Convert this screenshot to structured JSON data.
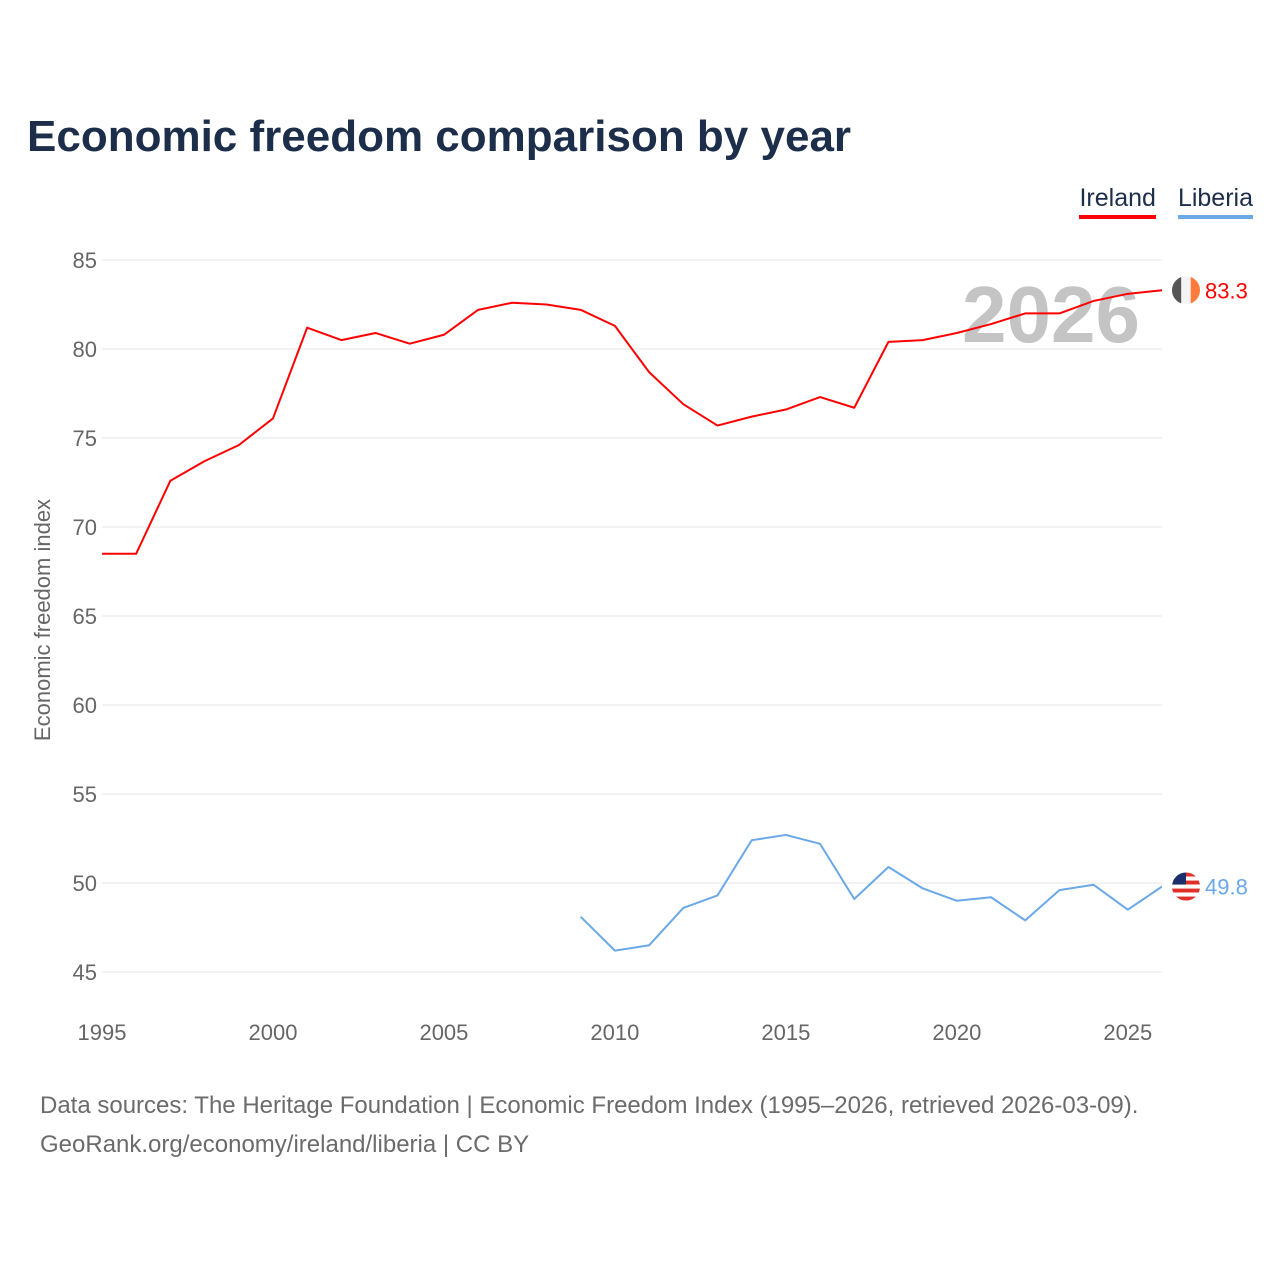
{
  "chart_data": {
    "type": "line",
    "title": "Economic freedom comparison by year",
    "xlabel": "",
    "ylabel": "Economic freedom index",
    "xlim": [
      1995,
      2026
    ],
    "ylim": [
      45,
      85
    ],
    "yticks": [
      45,
      50,
      55,
      60,
      65,
      70,
      75,
      80,
      85
    ],
    "xticks": [
      1995,
      2000,
      2005,
      2010,
      2015,
      2020,
      2025
    ],
    "grid": true,
    "legend_position": "top-right",
    "year_watermark": "2026",
    "series": [
      {
        "name": "Ireland",
        "color": "#ff0000",
        "end_label": "83.3",
        "x": [
          1995,
          1996,
          1997,
          1998,
          1999,
          2000,
          2001,
          2002,
          2003,
          2004,
          2005,
          2006,
          2007,
          2008,
          2009,
          2010,
          2011,
          2012,
          2013,
          2014,
          2015,
          2016,
          2017,
          2018,
          2019,
          2020,
          2021,
          2022,
          2023,
          2024,
          2025,
          2026
        ],
        "values": [
          68.5,
          68.5,
          72.6,
          73.7,
          74.6,
          76.1,
          81.2,
          80.5,
          80.9,
          80.3,
          80.8,
          82.2,
          82.6,
          82.5,
          82.2,
          81.3,
          78.7,
          76.9,
          75.7,
          76.2,
          76.6,
          77.3,
          76.7,
          80.4,
          80.5,
          80.9,
          81.4,
          82.0,
          82.0,
          82.7,
          83.1,
          83.3
        ]
      },
      {
        "name": "Liberia",
        "color": "#6aa8e8",
        "end_label": "49.8",
        "x": [
          2009,
          2010,
          2011,
          2012,
          2013,
          2014,
          2015,
          2016,
          2017,
          2018,
          2019,
          2020,
          2021,
          2022,
          2023,
          2024,
          2025,
          2026
        ],
        "values": [
          48.1,
          46.2,
          46.5,
          48.6,
          49.3,
          52.4,
          52.7,
          52.2,
          49.1,
          50.9,
          49.7,
          49.0,
          49.2,
          47.9,
          49.6,
          49.9,
          48.5,
          49.8
        ]
      }
    ]
  },
  "footer": {
    "line1": "Data sources: The Heritage Foundation | Economic Freedom Index (1995–2026, retrieved 2026-03-09).",
    "line2": "GeoRank.org/economy/ireland/liberia | CC BY"
  }
}
